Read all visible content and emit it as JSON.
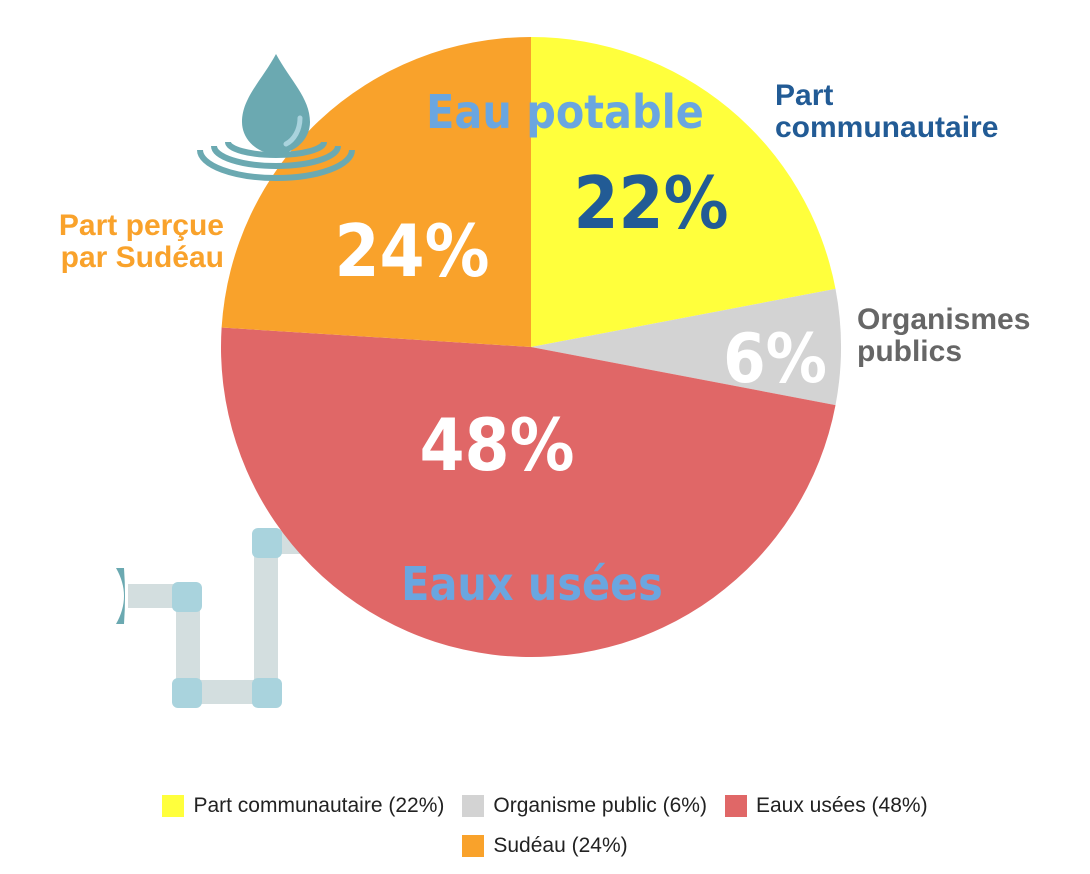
{
  "chart_data": {
    "type": "pie",
    "title": "",
    "slices": [
      {
        "label": "Part communautaire",
        "value": 22,
        "display": "22%",
        "color": "#FFFF3C",
        "text_color": "#225B95"
      },
      {
        "label": "Organismes publics",
        "value": 6,
        "display": "6%",
        "color": "#D3D3D3",
        "text_color": "#FFFFFF"
      },
      {
        "label": "Eaux usées",
        "value": 48,
        "display": "48%",
        "color": "#E06767",
        "text_color": "#FFFFFF"
      },
      {
        "label": "Part perçue par Sudéau",
        "value": 24,
        "display": "24%",
        "color": "#F9A22B",
        "text_color": "#FFFFFF"
      }
    ],
    "annotations": {
      "eau_potable": "Eau potable",
      "eaux_usees": "Eaux usées",
      "part_communautaire": [
        "Part",
        "communautaire"
      ],
      "organismes_publics": [
        "Organismes",
        "publics"
      ],
      "part_sudeau": [
        "Part perçue",
        "par Sudéau"
      ]
    },
    "legend": {
      "position": "bottom",
      "entries": [
        {
          "label": "Part communautaire (22%)",
          "color": "#FFFF3C"
        },
        {
          "label": "Organisme public (6%)",
          "color": "#D3D3D3"
        },
        {
          "label": "Eaux usées (48%)",
          "color": "#E06767"
        },
        {
          "label": "Sudéau (24%)",
          "color": "#F9A22B"
        }
      ]
    }
  },
  "colors": {
    "annotation_blue": "#6AA6E0",
    "communautaire_label": "#225B95",
    "organismes_label": "#666666",
    "sudeau_label": "#F9A22B",
    "drop": "#6BA9B1",
    "ripple": "#6BA9B1",
    "pipe": "#D3DEDF",
    "pipe_joint": "#A9D3DD"
  },
  "icons": [
    "water-drop-icon",
    "water-pipe-icon"
  ]
}
